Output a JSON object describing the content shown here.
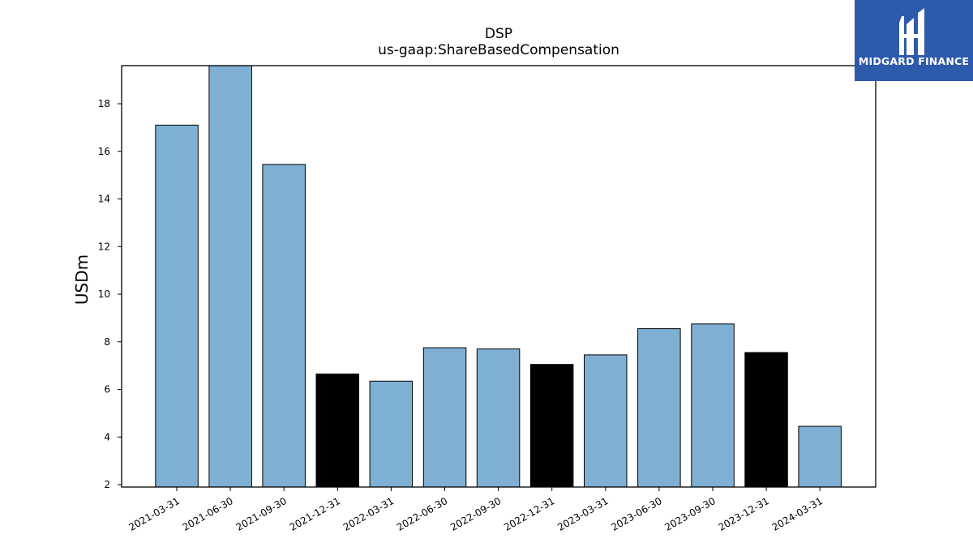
{
  "chart_data": {
    "type": "bar",
    "title": "DSP",
    "subtitle": "us-gaap:ShareBasedCompensation",
    "ylabel": "USDm",
    "xlabel": "",
    "ylim": [
      1.9,
      19.6
    ],
    "yticks": [
      2,
      4,
      6,
      8,
      10,
      12,
      14,
      16,
      18
    ],
    "categories": [
      "2021-03-31",
      "2021-06-30",
      "2021-09-30",
      "2021-12-31",
      "2022-03-31",
      "2022-06-30",
      "2022-09-30",
      "2022-12-31",
      "2023-03-31",
      "2023-06-30",
      "2023-09-30",
      "2023-12-31",
      "2024-03-31"
    ],
    "values": [
      17.1,
      19.7,
      15.45,
      6.65,
      6.35,
      7.75,
      7.7,
      7.05,
      7.45,
      8.55,
      8.75,
      7.55,
      4.45
    ],
    "bar_colors": [
      "#7fb0d3",
      "#7fb0d3",
      "#7fb0d3",
      "#000000",
      "#7fb0d3",
      "#7fb0d3",
      "#7fb0d3",
      "#000000",
      "#7fb0d3",
      "#7fb0d3",
      "#7fb0d3",
      "#000000",
      "#7fb0d3"
    ],
    "grid": false,
    "legend": "none"
  },
  "logo": {
    "text": "MIDGARD FINANCE",
    "background": "#2e5aac"
  }
}
